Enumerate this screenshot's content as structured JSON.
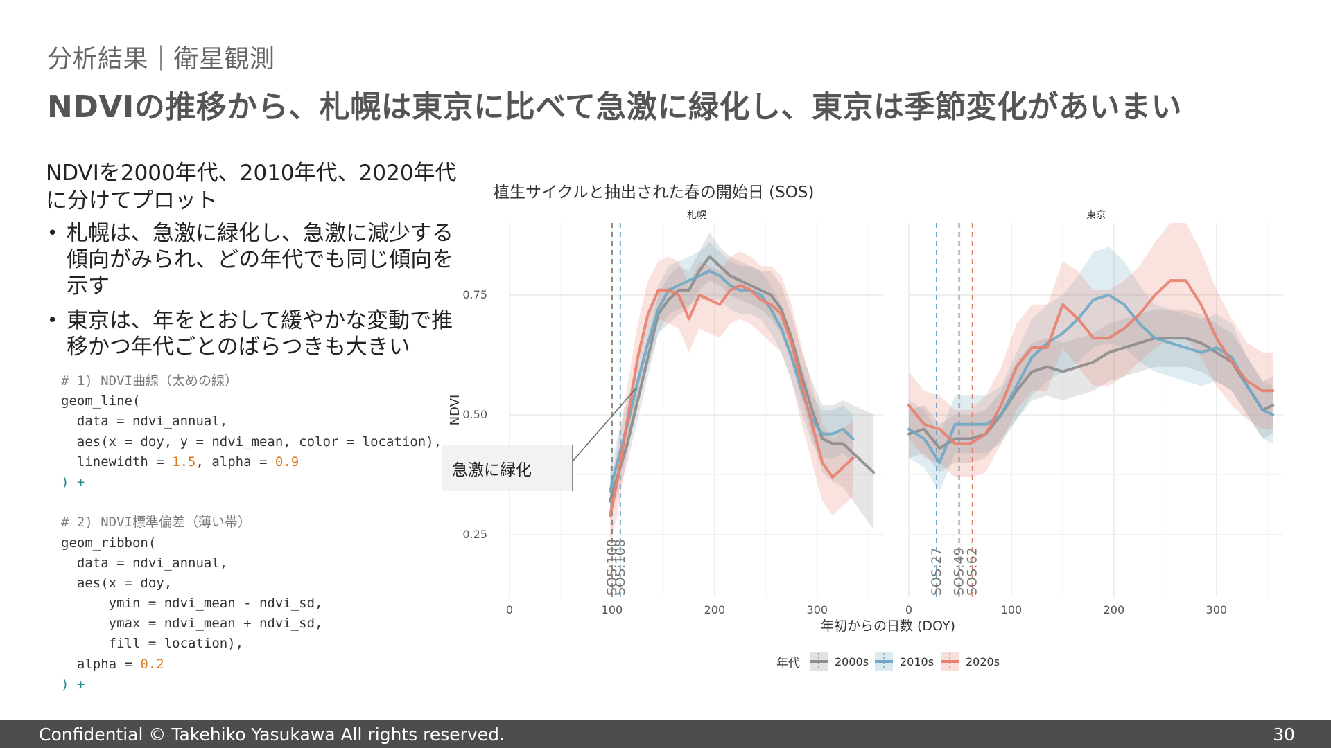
{
  "slide": {
    "subtitle": "分析結果｜衛星観測",
    "headline": "NDVIの推移から、札幌は東京に比べて急激に緑化し、東京は季節変化があいまい",
    "lead": "NDVIを2000年代、2010年代、2020年代に分けてプロット",
    "bullets": [
      "札幌は、急激に緑化し、急激に減少する傾向がみられ、どの年代でも同じ傾向を示す",
      "東京は、年をとおして緩やかな変動で推移かつ年代ごとのばらつきも大きい"
    ]
  },
  "code": {
    "c1": "# 1) NDVI曲線（太めの線）",
    "l1": "geom_line(",
    "l2": "  data = ndvi_annual,",
    "l3": "  aes(x = doy, y = ndvi_mean, color = location),",
    "l4a": "  linewidth = ",
    "l4b": "1.5",
    "l4c": ", alpha = ",
    "l4d": "0.9",
    "l5": ") +",
    "c2": "# 2) NDVI標準偏差（薄い帯）",
    "l6": "geom_ribbon(",
    "l7": "  data = ndvi_annual,",
    "l8": "  aes(x = doy,",
    "l9": "      ymin = ndvi_mean - ndvi_sd,",
    "l10": "      ymax = ndvi_mean + ndvi_sd,",
    "l11": "      fill = location),",
    "l12a": "  alpha = ",
    "l12b": "0.2",
    "l13": ") +"
  },
  "chart_data": {
    "type": "line",
    "title": "植生サイクルと抽出された春の開始日 (SOS)",
    "xlabel": "年初からの日数 (DOY)",
    "ylabel": "NDVI",
    "xlim": [
      0,
      365
    ],
    "ylim": [
      0.12,
      0.9
    ],
    "xticks": [
      0,
      100,
      200,
      300
    ],
    "xtick_labels": [
      "0",
      "100",
      "200",
      "300"
    ],
    "yticks": [
      0.25,
      0.5,
      0.75
    ],
    "ytick_labels": [
      "0.25",
      "0.50",
      "0.75"
    ],
    "legend_title": "年代",
    "legend_position": "bottom",
    "colors": {
      "2000s": "#8c8c8c",
      "2010s": "#6fa8c4",
      "2020s": "#e8806d"
    },
    "annotation": "急激に緑化",
    "panels": [
      {
        "name": "札幌",
        "sos": [
          {
            "decade": "2020s",
            "doy": 100,
            "label": "SOS:100"
          },
          {
            "decade": "2000s",
            "doy": 100,
            "label": "SOS:100"
          },
          {
            "decade": "2010s",
            "doy": 108,
            "label": "SOS:108"
          }
        ],
        "series": [
          {
            "name": "2000s",
            "x": [
              98,
              105,
              115,
              125,
              135,
              145,
              155,
              165,
              175,
              185,
              195,
              205,
              215,
              225,
              235,
              245,
              255,
              265,
              275,
              285,
              295,
              305,
              315,
              325,
              335,
              345,
              355
            ],
            "y": [
              0.32,
              0.37,
              0.44,
              0.53,
              0.62,
              0.71,
              0.74,
              0.76,
              0.76,
              0.8,
              0.83,
              0.81,
              0.79,
              0.78,
              0.77,
              0.76,
              0.75,
              0.72,
              0.66,
              0.58,
              0.51,
              0.45,
              0.44,
              0.44,
              0.42,
              0.4,
              0.38
            ],
            "sd": [
              0.04,
              0.04,
              0.04,
              0.04,
              0.04,
              0.04,
              0.05,
              0.05,
              0.04,
              0.04,
              0.05,
              0.04,
              0.04,
              0.04,
              0.04,
              0.04,
              0.05,
              0.05,
              0.05,
              0.05,
              0.06,
              0.07,
              0.08,
              0.09,
              0.1,
              0.11,
              0.12
            ]
          },
          {
            "name": "2010s",
            "x": [
              98,
              105,
              115,
              125,
              135,
              145,
              155,
              165,
              175,
              185,
              195,
              205,
              215,
              225,
              235,
              245,
              255,
              265,
              275,
              285,
              295,
              305,
              315,
              325,
              335
            ],
            "y": [
              0.34,
              0.4,
              0.48,
              0.57,
              0.65,
              0.72,
              0.76,
              0.77,
              0.78,
              0.79,
              0.8,
              0.79,
              0.77,
              0.76,
              0.76,
              0.75,
              0.72,
              0.68,
              0.62,
              0.55,
              0.49,
              0.46,
              0.46,
              0.47,
              0.45
            ],
            "sd": [
              0.05,
              0.05,
              0.05,
              0.05,
              0.05,
              0.05,
              0.05,
              0.05,
              0.05,
              0.05,
              0.06,
              0.05,
              0.05,
              0.05,
              0.05,
              0.05,
              0.05,
              0.05,
              0.05,
              0.05,
              0.05,
              0.05,
              0.05,
              0.05,
              0.05
            ]
          },
          {
            "name": "2020s",
            "x": [
              98,
              105,
              115,
              125,
              135,
              145,
              155,
              165,
              175,
              185,
              195,
              205,
              215,
              225,
              235,
              245,
              255,
              265,
              275,
              285,
              295,
              305,
              315,
              325,
              335
            ],
            "y": [
              0.29,
              0.36,
              0.49,
              0.62,
              0.71,
              0.76,
              0.76,
              0.75,
              0.7,
              0.75,
              0.74,
              0.73,
              0.76,
              0.77,
              0.76,
              0.74,
              0.73,
              0.71,
              0.65,
              0.56,
              0.48,
              0.4,
              0.37,
              0.39,
              0.41
            ],
            "sd": [
              0.06,
              0.07,
              0.07,
              0.07,
              0.07,
              0.06,
              0.07,
              0.07,
              0.07,
              0.07,
              0.07,
              0.07,
              0.07,
              0.07,
              0.07,
              0.07,
              0.08,
              0.08,
              0.08,
              0.08,
              0.08,
              0.08,
              0.08,
              0.08,
              0.08
            ]
          }
        ]
      },
      {
        "name": "東京",
        "sos": [
          {
            "decade": "2010s",
            "doy": 27,
            "label": "SOS:27"
          },
          {
            "decade": "2000s",
            "doy": 49,
            "label": "SOS:49"
          },
          {
            "decade": "2020s",
            "doy": 62,
            "label": "SOS:62"
          }
        ],
        "series": [
          {
            "name": "2000s",
            "x": [
              0,
              15,
              30,
              45,
              60,
              75,
              90,
              105,
              120,
              135,
              150,
              165,
              180,
              195,
              210,
              225,
              240,
              255,
              270,
              285,
              300,
              315,
              330,
              345,
              355
            ],
            "y": [
              0.46,
              0.47,
              0.43,
              0.45,
              0.45,
              0.46,
              0.5,
              0.55,
              0.59,
              0.6,
              0.59,
              0.6,
              0.61,
              0.63,
              0.64,
              0.65,
              0.66,
              0.66,
              0.66,
              0.65,
              0.63,
              0.61,
              0.56,
              0.51,
              0.52
            ],
            "sd": [
              0.05,
              0.05,
              0.05,
              0.05,
              0.05,
              0.05,
              0.05,
              0.06,
              0.06,
              0.06,
              0.06,
              0.06,
              0.06,
              0.06,
              0.06,
              0.06,
              0.06,
              0.06,
              0.06,
              0.06,
              0.06,
              0.06,
              0.06,
              0.06,
              0.06
            ]
          },
          {
            "name": "2010s",
            "x": [
              0,
              15,
              30,
              45,
              60,
              75,
              90,
              105,
              120,
              135,
              150,
              165,
              180,
              195,
              210,
              225,
              240,
              255,
              270,
              285,
              300,
              315,
              330,
              345,
              355
            ],
            "y": [
              0.47,
              0.45,
              0.4,
              0.48,
              0.48,
              0.48,
              0.5,
              0.56,
              0.62,
              0.65,
              0.67,
              0.7,
              0.74,
              0.75,
              0.73,
              0.69,
              0.66,
              0.65,
              0.64,
              0.63,
              0.64,
              0.62,
              0.56,
              0.51,
              0.5
            ],
            "sd": [
              0.06,
              0.06,
              0.06,
              0.06,
              0.06,
              0.06,
              0.06,
              0.07,
              0.08,
              0.08,
              0.08,
              0.09,
              0.1,
              0.1,
              0.09,
              0.08,
              0.07,
              0.07,
              0.07,
              0.07,
              0.07,
              0.07,
              0.06,
              0.06,
              0.06
            ]
          },
          {
            "name": "2020s",
            "x": [
              0,
              15,
              30,
              45,
              60,
              75,
              90,
              105,
              120,
              135,
              150,
              165,
              180,
              195,
              210,
              225,
              240,
              255,
              270,
              285,
              300,
              315,
              330,
              345,
              355
            ],
            "y": [
              0.52,
              0.48,
              0.47,
              0.44,
              0.44,
              0.46,
              0.52,
              0.6,
              0.64,
              0.64,
              0.73,
              0.7,
              0.66,
              0.66,
              0.68,
              0.71,
              0.75,
              0.78,
              0.78,
              0.73,
              0.66,
              0.61,
              0.57,
              0.55,
              0.55
            ],
            "sd": [
              0.07,
              0.07,
              0.07,
              0.07,
              0.07,
              0.08,
              0.08,
              0.09,
              0.09,
              0.09,
              0.09,
              0.1,
              0.1,
              0.1,
              0.1,
              0.1,
              0.11,
              0.12,
              0.12,
              0.11,
              0.1,
              0.09,
              0.08,
              0.08,
              0.08
            ]
          }
        ]
      }
    ]
  },
  "footer": {
    "copyright": "Confidential  © Takehiko Yasukawa  All rights reserved.",
    "page_number": "30"
  }
}
